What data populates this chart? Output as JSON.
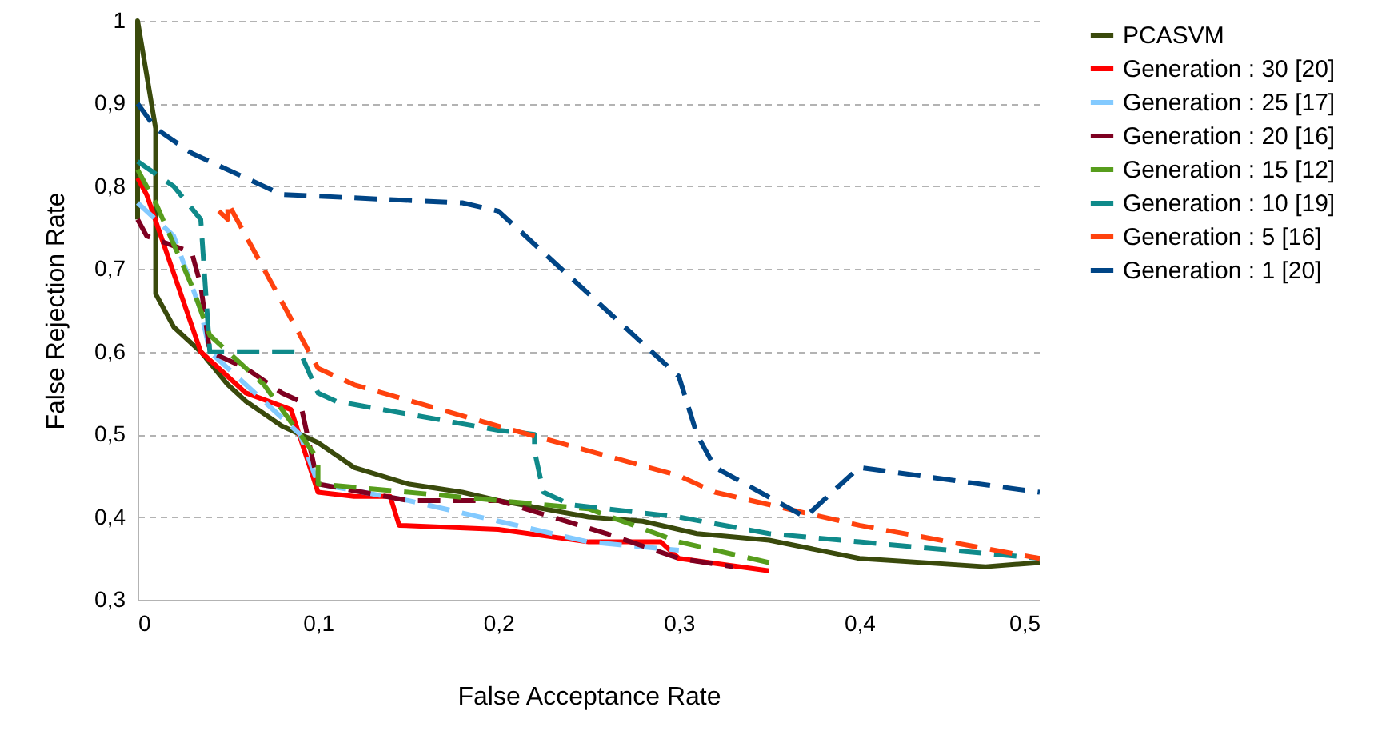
{
  "chart_data": {
    "type": "line",
    "xlabel": "False Acceptance Rate",
    "ylabel": "False Rejection Rate",
    "xlim": [
      0,
      0.5
    ],
    "xticks": [
      0,
      {
        "value": 0.1,
        "label": "0,1"
      },
      {
        "value": 0.2,
        "label": "0,2"
      },
      {
        "value": 0.3,
        "label": "0,3"
      },
      {
        "value": 0.4,
        "label": "0,4"
      },
      {
        "value": 0.5,
        "label": "0,5"
      }
    ],
    "ylim": [
      0.3,
      1
    ],
    "yticks": [
      {
        "value": 0.3,
        "label": "0,3"
      },
      {
        "value": 0.4,
        "label": "0,4"
      },
      {
        "value": 0.5,
        "label": "0,5"
      },
      {
        "value": 0.6,
        "label": "0,6"
      },
      {
        "value": 0.7,
        "label": "0,7"
      },
      {
        "value": 0.8,
        "label": "0,8"
      },
      {
        "value": 0.9,
        "label": "0,9"
      },
      1
    ],
    "grid": "y",
    "legend": "right",
    "marker": "none",
    "series": [
      {
        "name": "PCASVM",
        "color": "#3a4a0c",
        "line_style": "solid",
        "x": [
          0,
          0,
          0.01,
          0.01,
          0.02,
          0.035,
          0.05,
          0.06,
          0.08,
          0.1,
          0.12,
          0.15,
          0.18,
          0.2,
          0.25,
          0.28,
          0.31,
          0.35,
          0.4,
          0.47,
          0.5
        ],
        "values": [
          0.76,
          1.0,
          0.87,
          0.67,
          0.63,
          0.6,
          0.56,
          0.54,
          0.51,
          0.49,
          0.46,
          0.44,
          0.43,
          0.42,
          0.4,
          0.395,
          0.38,
          0.372,
          0.35,
          0.34,
          0.345
        ]
      },
      {
        "name": "Generation : 30 [20]",
        "color": "#ff0000",
        "line_style": "solid",
        "x": [
          0,
          0.005,
          0.035,
          0.06,
          0.085,
          0.1,
          0.12,
          0.14,
          0.145,
          0.2,
          0.25,
          0.29,
          0.3,
          0.35
        ],
        "values": [
          0.81,
          0.79,
          0.6,
          0.55,
          0.53,
          0.43,
          0.425,
          0.425,
          0.39,
          0.385,
          0.37,
          0.37,
          0.35,
          0.335
        ]
      },
      {
        "name": "Generation : 25 [17]",
        "color": "#83caff",
        "line_style": "dashed",
        "x": [
          0,
          0.02,
          0.035,
          0.04,
          0.09,
          0.1,
          0.15,
          0.2,
          0.25,
          0.3
        ],
        "values": [
          0.78,
          0.74,
          0.65,
          0.6,
          0.5,
          0.44,
          0.42,
          0.395,
          0.37,
          0.36
        ]
      },
      {
        "name": "Generation : 20 [16]",
        "color": "#7e0021",
        "line_style": "dashed",
        "x": [
          0,
          0.005,
          0.03,
          0.035,
          0.04,
          0.06,
          0.08,
          0.09,
          0.1,
          0.15,
          0.2,
          0.26,
          0.3,
          0.33
        ],
        "values": [
          0.76,
          0.74,
          0.72,
          0.68,
          0.6,
          0.58,
          0.55,
          0.54,
          0.44,
          0.42,
          0.42,
          0.38,
          0.35,
          0.34
        ]
      },
      {
        "name": "Generation : 15 [12]",
        "color": "#579d1c",
        "line_style": "dashed",
        "x": [
          0,
          0.01,
          0.03,
          0.04,
          0.07,
          0.1,
          0.1,
          0.2,
          0.25,
          0.3,
          0.35
        ],
        "values": [
          0.82,
          0.78,
          0.68,
          0.62,
          0.56,
          0.47,
          0.44,
          0.42,
          0.41,
          0.37,
          0.345
        ]
      },
      {
        "name": "Generation : 10 [19]",
        "color": "#0f8a8a",
        "line_style": "dashed",
        "x": [
          0,
          0.02,
          0.035,
          0.04,
          0.06,
          0.09,
          0.1,
          0.11,
          0.2,
          0.22,
          0.22,
          0.225,
          0.24,
          0.3,
          0.35,
          0.4,
          0.5
        ],
        "values": [
          0.83,
          0.8,
          0.76,
          0.6,
          0.6,
          0.6,
          0.55,
          0.54,
          0.505,
          0.5,
          0.48,
          0.43,
          0.415,
          0.4,
          0.38,
          0.37,
          0.35
        ]
      },
      {
        "name": "Generation : 5 [16]",
        "color": "#ff420e",
        "line_style": "dashed",
        "x": [
          0.045,
          0.05,
          0.05,
          0.1,
          0.12,
          0.2,
          0.3,
          0.32,
          0.4,
          0.5
        ],
        "values": [
          0.77,
          0.76,
          0.78,
          0.58,
          0.56,
          0.51,
          0.45,
          0.43,
          0.39,
          0.35
        ]
      },
      {
        "name": "Generation : 1 [20]",
        "color": "#004586",
        "line_style": "dashed",
        "x": [
          0,
          0.01,
          0.03,
          0.07,
          0.08,
          0.18,
          0.2,
          0.3,
          0.31,
          0.32,
          0.37,
          0.4,
          0.5
        ],
        "values": [
          0.9,
          0.87,
          0.84,
          0.8,
          0.79,
          0.78,
          0.77,
          0.57,
          0.5,
          0.46,
          0.4,
          0.46,
          0.43
        ]
      }
    ]
  }
}
